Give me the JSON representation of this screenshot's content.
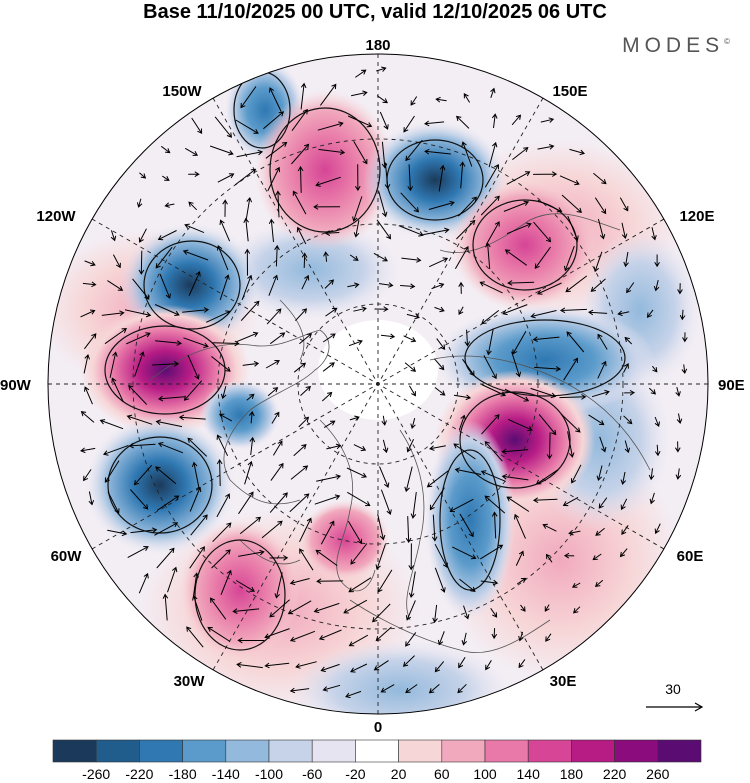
{
  "title": "Base 11/10/2025 00 UTC, valid 12/10/2025 06 UTC",
  "brand": "MODES",
  "brand_mark": "©",
  "longitude_labels": {
    "top": "180",
    "bottom": "0",
    "left": "90W",
    "right": "90E",
    "upper_left_1": "150W",
    "upper_left_2": "120W",
    "upper_right_1": "150E",
    "upper_right_2": "120E",
    "lower_left_1": "60W",
    "lower_left_2": "30W",
    "lower_right_1": "60E",
    "lower_right_2": "30E"
  },
  "wind_reference": {
    "value": "30"
  },
  "colorbar": {
    "colors": [
      "#1b3a5b",
      "#215d8c",
      "#2f78b2",
      "#5b9bcb",
      "#93b9dc",
      "#c6d3e9",
      "#e6e4f1",
      "#ffffff",
      "#f7d6d7",
      "#f1a9bd",
      "#e879a8",
      "#d64596",
      "#b71c85",
      "#8b0d7d",
      "#5a0c73"
    ],
    "labels": [
      "-260",
      "-220",
      "-180",
      "-140",
      "-100",
      "-60",
      "-20",
      "20",
      "60",
      "100",
      "140",
      "180",
      "220",
      "260"
    ]
  },
  "anomaly_colors": {
    "negative_strong": "#1f5f92",
    "negative_mid": "#5f9ccc",
    "negative_weak": "#c3d3e9",
    "positive_weak": "#f6d2d4",
    "positive_mid": "#ee93b4",
    "positive_strong": "#b5177f"
  },
  "map_data": {
    "projection": "north-polar-stereographic",
    "field": "geopotential height anomaly",
    "units_note": "colorbar from -260 to 260",
    "centers": [
      {
        "sign": "negative",
        "near": "160W",
        "magnitude": "-140"
      },
      {
        "sign": "positive",
        "near": "165W",
        "magnitude": "140"
      },
      {
        "sign": "negative",
        "near": "160E",
        "magnitude": "-180"
      },
      {
        "sign": "positive",
        "near": "130E",
        "magnitude": "180"
      },
      {
        "sign": "negative",
        "near": "120W",
        "magnitude": "-220"
      },
      {
        "sign": "positive",
        "near": "95W",
        "magnitude": "220"
      },
      {
        "sign": "negative",
        "near": "95E",
        "magnitude": "-140"
      },
      {
        "sign": "positive",
        "near": "70E",
        "magnitude": "220"
      },
      {
        "sign": "negative",
        "near": "60W",
        "magnitude": "-180"
      },
      {
        "sign": "negative",
        "near": "30E",
        "magnitude": "-140"
      },
      {
        "sign": "positive",
        "near": "25W",
        "magnitude": "100"
      },
      {
        "sign": "positive",
        "near": "35W",
        "magnitude": "140"
      }
    ]
  }
}
